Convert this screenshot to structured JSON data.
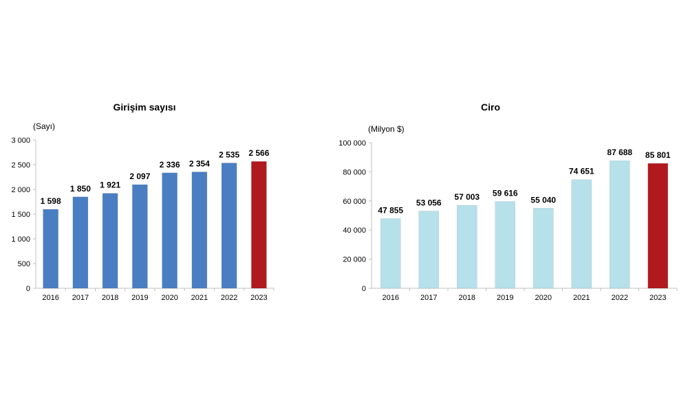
{
  "chart_data": [
    {
      "type": "bar",
      "title": "Girişim sayısı",
      "ylabel": "(Sayı)",
      "xlabel": "",
      "categories": [
        "2016",
        "2017",
        "2018",
        "2019",
        "2020",
        "2021",
        "2022",
        "2023"
      ],
      "values": [
        1598,
        1850,
        1921,
        2097,
        2336,
        2354,
        2535,
        2566
      ],
      "value_labels": [
        "1 598",
        "1 850",
        "1 921",
        "2 097",
        "2 336",
        "2 354",
        "2 535",
        "2 566"
      ],
      "ylim": [
        0,
        3000
      ],
      "yticks": [
        0,
        500,
        1000,
        1500,
        2000,
        2500,
        3000
      ],
      "ytick_labels": [
        "0",
        "500",
        "1 000",
        "1 500",
        "2 000",
        "2 500",
        "3 000"
      ],
      "bar_colors": [
        "#4a7ec2",
        "#4a7ec2",
        "#4a7ec2",
        "#4a7ec2",
        "#4a7ec2",
        "#4a7ec2",
        "#4a7ec2",
        "#b01a1f"
      ],
      "grid": false,
      "legend": "none"
    },
    {
      "type": "bar",
      "title": "Ciro",
      "ylabel": "(Milyon $)",
      "xlabel": "",
      "categories": [
        "2016",
        "2017",
        "2018",
        "2019",
        "2020",
        "2021",
        "2022",
        "2023"
      ],
      "values": [
        47855,
        53056,
        57003,
        59616,
        55040,
        74651,
        87688,
        85801
      ],
      "value_labels": [
        "47 855",
        "53 056",
        "57 003",
        "59 616",
        "55 040",
        "74 651",
        "87 688",
        "85 801"
      ],
      "ylim": [
        0,
        100000
      ],
      "yticks": [
        0,
        20000,
        40000,
        60000,
        80000,
        100000
      ],
      "ytick_labels": [
        "0",
        "20 000",
        "40 000",
        "60 000",
        "80 000",
        "100 000"
      ],
      "bar_colors": [
        "#b6e0ea",
        "#b6e0ea",
        "#b6e0ea",
        "#b6e0ea",
        "#b6e0ea",
        "#b6e0ea",
        "#b6e0ea",
        "#b01a1f"
      ],
      "grid": false,
      "legend": "none"
    }
  ]
}
